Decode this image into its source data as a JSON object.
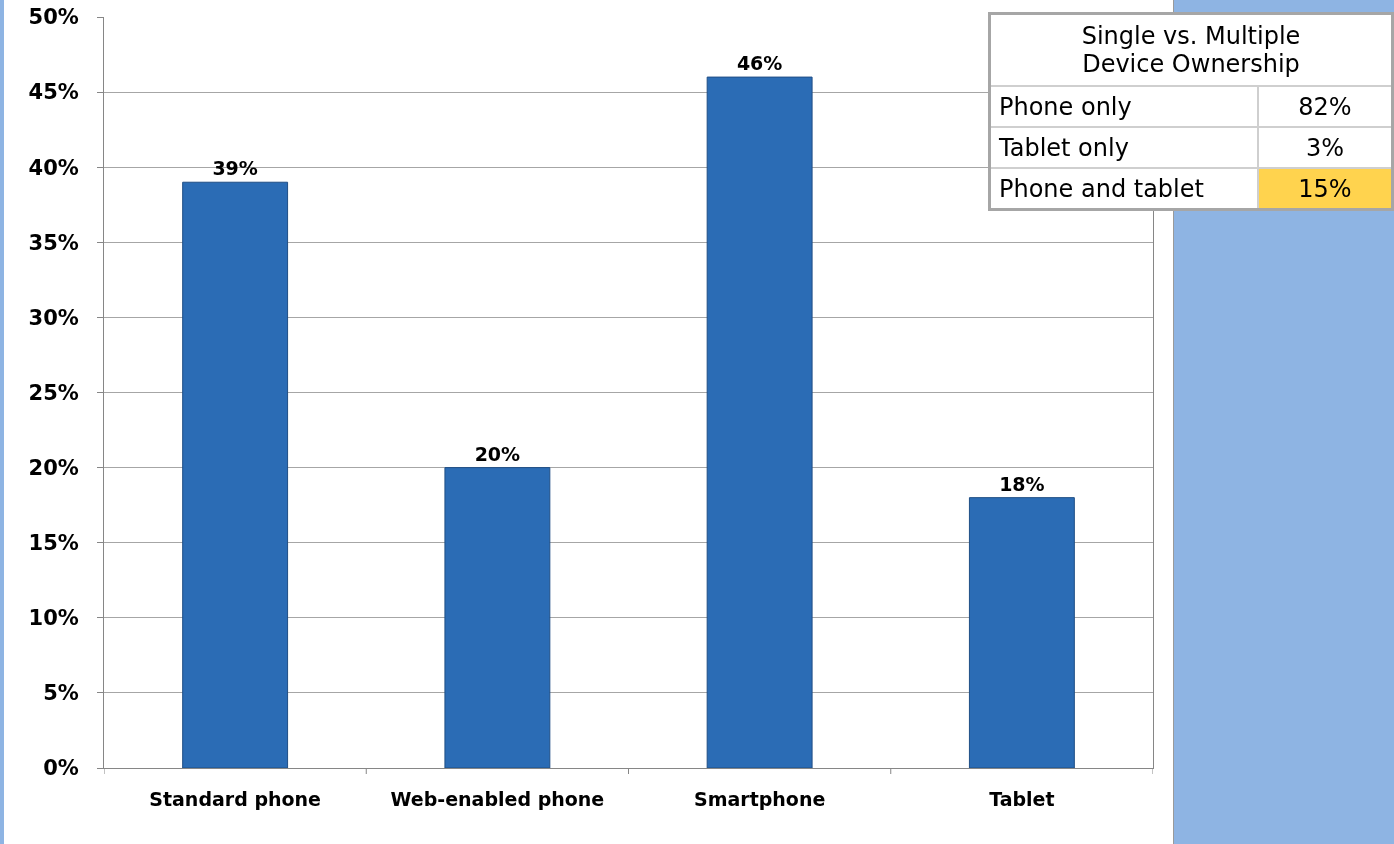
{
  "chart_data": [
    {
      "type": "bar",
      "categories": [
        "Standard phone",
        "Web-enabled phone",
        "Smartphone",
        "Tablet"
      ],
      "values": [
        39,
        20,
        46,
        18
      ],
      "value_labels": [
        "39%",
        "20%",
        "46%",
        "18%"
      ],
      "color": "#2b6cb5",
      "ylim": [
        0,
        50
      ],
      "yticks": [
        {
          "value": 0,
          "label": "0%"
        },
        {
          "value": 5,
          "label": "5%"
        },
        {
          "value": 10,
          "label": "10%"
        },
        {
          "value": 15,
          "label": "15%"
        },
        {
          "value": 20,
          "label": "20%"
        },
        {
          "value": 25,
          "label": "25%"
        },
        {
          "value": 30,
          "label": "30%"
        },
        {
          "value": 35,
          "label": "35%"
        },
        {
          "value": 40,
          "label": "40%"
        },
        {
          "value": 45,
          "label": "45%"
        },
        {
          "value": 50,
          "label": "50%"
        }
      ],
      "grid": "y"
    },
    {
      "type": "other",
      "title": "Single vs. Multiple Device Ownership",
      "categories": [
        "Phone only",
        "Tablet only",
        "Phone and tablet"
      ],
      "values": [
        82,
        3,
        15
      ],
      "value_labels": [
        "82%",
        "3%",
        "15%"
      ],
      "colors": [
        "#ffffff",
        "#ffffff",
        "#ffd34e"
      ]
    }
  ]
}
